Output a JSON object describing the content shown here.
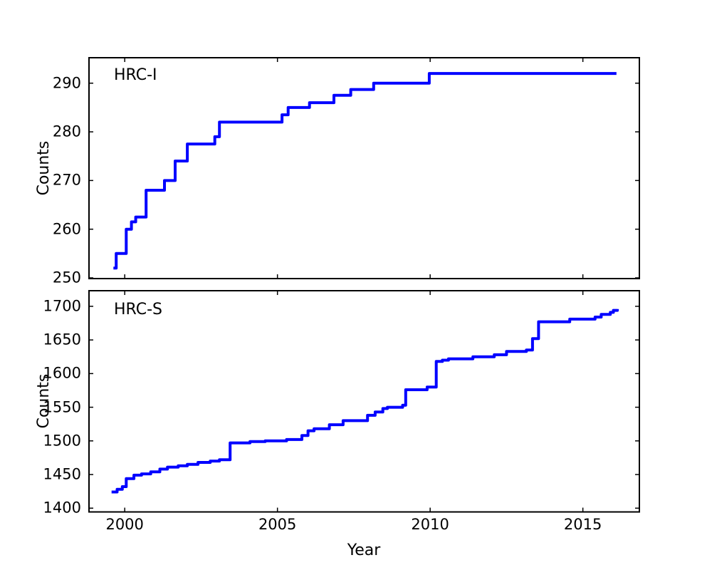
{
  "figure": {
    "background": "#ffffff",
    "text_color": "#000000",
    "xlabel": "Year",
    "ylabel": "Counts"
  },
  "chart_data": [
    {
      "type": "line",
      "style": "step-post",
      "title": "HRC-I",
      "ylabel": "Counts",
      "xlabel": "",
      "line_color": "#0000ff",
      "line_width": 4,
      "grid": false,
      "legend": "none",
      "xlim": [
        1998.83,
        2016.85
      ],
      "ylim": [
        249.85,
        295.23
      ],
      "xticks": [
        2000,
        2005,
        2010,
        2015
      ],
      "show_xtick_labels": false,
      "yticks": [
        250,
        260,
        270,
        280,
        290
      ],
      "points": [
        [
          1999.63,
          252
        ],
        [
          1999.72,
          255
        ],
        [
          2000.05,
          260
        ],
        [
          2000.22,
          261.5
        ],
        [
          2000.36,
          262.5
        ],
        [
          2000.7,
          268
        ],
        [
          2001.3,
          270
        ],
        [
          2001.65,
          274
        ],
        [
          2002.05,
          277.5
        ],
        [
          2002.95,
          279
        ],
        [
          2003.1,
          282
        ],
        [
          2005.15,
          283.5
        ],
        [
          2005.35,
          285
        ],
        [
          2006.05,
          286
        ],
        [
          2006.85,
          287.5
        ],
        [
          2007.4,
          288.7
        ],
        [
          2008.15,
          290
        ],
        [
          2009.97,
          292
        ],
        [
          2016.1,
          292
        ]
      ]
    },
    {
      "type": "line",
      "style": "step-post",
      "title": "HRC-S",
      "ylabel": "Counts",
      "xlabel": "Year",
      "line_color": "#0000ff",
      "line_width": 4,
      "grid": false,
      "legend": "none",
      "xlim": [
        1998.83,
        2016.85
      ],
      "ylim": [
        1394.4,
        1723.2
      ],
      "xticks": [
        2000,
        2005,
        2010,
        2015
      ],
      "show_xtick_labels": true,
      "yticks": [
        1400,
        1450,
        1500,
        1550,
        1600,
        1650,
        1700
      ],
      "points": [
        [
          1999.57,
          1424
        ],
        [
          1999.75,
          1428
        ],
        [
          1999.92,
          1432
        ],
        [
          2000.05,
          1444
        ],
        [
          2000.3,
          1449
        ],
        [
          2000.55,
          1451
        ],
        [
          2000.85,
          1454
        ],
        [
          2001.15,
          1458
        ],
        [
          2001.4,
          1461
        ],
        [
          2001.75,
          1463
        ],
        [
          2002.05,
          1465
        ],
        [
          2002.4,
          1468
        ],
        [
          2002.8,
          1470
        ],
        [
          2003.1,
          1472
        ],
        [
          2003.45,
          1497
        ],
        [
          2004.1,
          1499
        ],
        [
          2004.6,
          1500
        ],
        [
          2005.3,
          1502
        ],
        [
          2005.8,
          1508
        ],
        [
          2006.0,
          1515
        ],
        [
          2006.2,
          1518
        ],
        [
          2006.7,
          1524
        ],
        [
          2007.15,
          1530
        ],
        [
          2007.95,
          1538
        ],
        [
          2008.2,
          1543
        ],
        [
          2008.45,
          1548
        ],
        [
          2008.6,
          1550
        ],
        [
          2009.1,
          1553
        ],
        [
          2009.2,
          1576
        ],
        [
          2009.9,
          1580
        ],
        [
          2010.2,
          1618
        ],
        [
          2010.4,
          1620
        ],
        [
          2010.6,
          1622
        ],
        [
          2011.4,
          1625
        ],
        [
          2012.1,
          1628
        ],
        [
          2012.5,
          1633
        ],
        [
          2013.15,
          1635
        ],
        [
          2013.35,
          1652
        ],
        [
          2013.55,
          1677
        ],
        [
          2014.57,
          1681
        ],
        [
          2015.4,
          1684
        ],
        [
          2015.6,
          1688
        ],
        [
          2015.9,
          1691
        ],
        [
          2016.0,
          1694
        ],
        [
          2016.13,
          1696
        ]
      ]
    }
  ]
}
